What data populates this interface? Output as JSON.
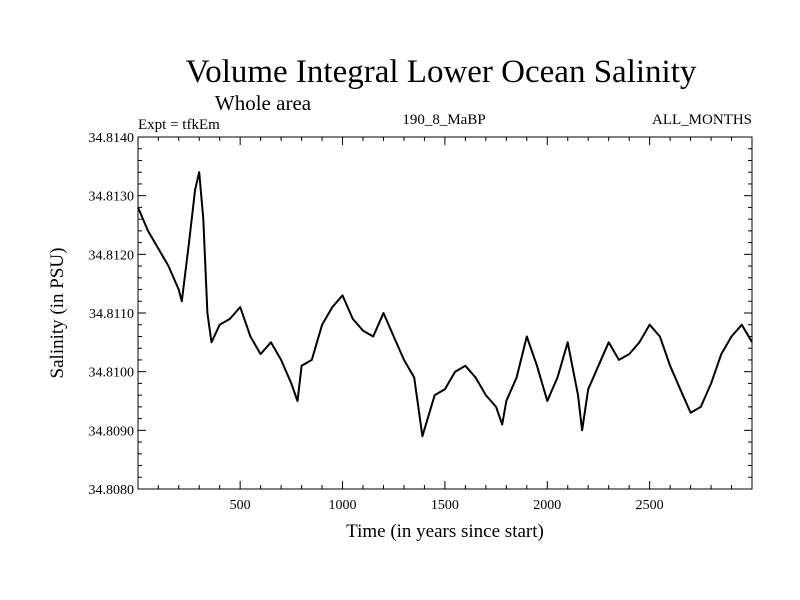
{
  "chart_data": {
    "type": "line",
    "title": "Volume Integral Lower Ocean Salinity",
    "subtitle": "Whole area",
    "experiment_label": "Expt = tfkEm",
    "run_label": "190_8_MaBP",
    "period_label": "ALL_MONTHS",
    "xlabel": "Time (in years since start)",
    "ylabel": "Salinity (in PSU)",
    "xlim": [
      1,
      3000
    ],
    "ylim": [
      34.808,
      34.814
    ],
    "x_ticks": [
      500,
      1000,
      1500,
      2000,
      2500
    ],
    "y_ticks": [
      "34.8080",
      "34.8090",
      "34.8100",
      "34.8110",
      "34.8120",
      "34.8130",
      "34.8140"
    ],
    "grid": false,
    "line_color": "#000000",
    "series": [
      {
        "x": [
          1,
          50,
          100,
          150,
          200,
          215,
          250,
          280,
          300,
          320,
          340,
          360,
          400,
          450,
          500,
          550,
          600,
          650,
          700,
          750,
          780,
          800,
          850,
          900,
          950,
          1000,
          1050,
          1100,
          1150,
          1200,
          1250,
          1300,
          1350,
          1390,
          1450,
          1500,
          1550,
          1600,
          1650,
          1700,
          1750,
          1780,
          1800,
          1850,
          1900,
          1950,
          2000,
          2050,
          2100,
          2150,
          2170,
          2200,
          2250,
          2300,
          2350,
          2400,
          2450,
          2500,
          2550,
          2600,
          2650,
          2700,
          2750,
          2800,
          2850,
          2900,
          2950,
          3000
        ],
        "y": [
          34.8128,
          34.8124,
          34.8121,
          34.8118,
          34.8114,
          34.8112,
          34.8122,
          34.8131,
          34.8134,
          34.8126,
          34.811,
          34.8105,
          34.8108,
          34.8109,
          34.8111,
          34.8106,
          34.8103,
          34.8105,
          34.8102,
          34.8098,
          34.8095,
          34.8101,
          34.8102,
          34.8108,
          34.8111,
          34.8113,
          34.8109,
          34.8107,
          34.8106,
          34.811,
          34.8106,
          34.8102,
          34.8099,
          34.8089,
          34.8096,
          34.8097,
          34.81,
          34.8101,
          34.8099,
          34.8096,
          34.8094,
          34.8091,
          34.8095,
          34.8099,
          34.8106,
          34.8101,
          34.8095,
          34.8099,
          34.8105,
          34.8096,
          34.809,
          34.8097,
          34.8101,
          34.8105,
          34.8102,
          34.8103,
          34.8105,
          34.8108,
          34.8106,
          34.8101,
          34.8097,
          34.8093,
          34.8094,
          34.8098,
          34.8103,
          34.8106,
          34.8108,
          34.8105
        ]
      }
    ]
  }
}
